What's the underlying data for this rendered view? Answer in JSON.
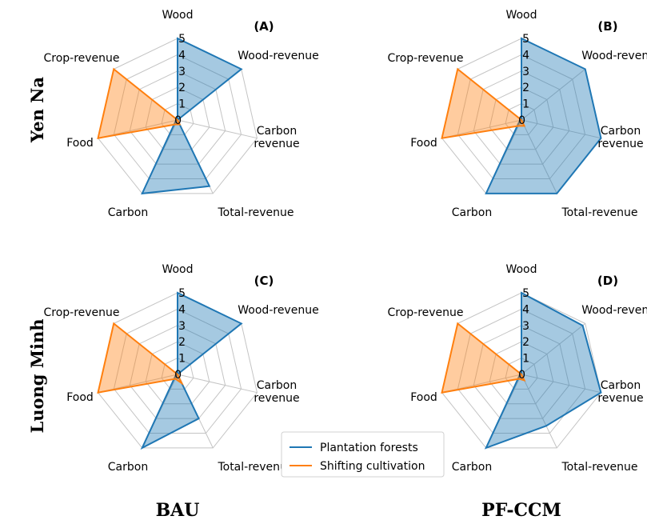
{
  "chart_data": {
    "type": "radar",
    "axes": [
      "Wood",
      "Wood-revenue",
      "Carbon\nrevenue",
      "Total-revenue",
      "Carbon",
      "Food",
      "Crop-revenue"
    ],
    "rlim": [
      0,
      5
    ],
    "rticks": [
      "0",
      "1",
      "2",
      "3",
      "4",
      "5"
    ],
    "row_labels": [
      "Yen Na",
      "Luong Minh"
    ],
    "column_labels": [
      "BAU",
      "PF-CCM"
    ],
    "legend": {
      "placement": "bottom-center",
      "entries": [
        "Plantation forests",
        "Shifting cultivation"
      ]
    },
    "colors": {
      "Plantation forests": "#1f77b4",
      "Shifting cultivation": "#ff7f0e"
    },
    "panels": [
      {
        "label": "(A)",
        "series": [
          {
            "name": "Plantation forests",
            "values": [
              5,
              5,
              0,
              4.5,
              5,
              0.1,
              0
            ]
          },
          {
            "name": "Shifting cultivation",
            "values": [
              0,
              0,
              0,
              0.3,
              0.3,
              5,
              5
            ]
          }
        ]
      },
      {
        "label": "(B)",
        "series": [
          {
            "name": "Plantation forests",
            "values": [
              5,
              5,
              5,
              5,
              5,
              0.1,
              0
            ]
          },
          {
            "name": "Shifting cultivation",
            "values": [
              0,
              0,
              0,
              0.4,
              0.4,
              5,
              5
            ]
          }
        ]
      },
      {
        "label": "(C)",
        "series": [
          {
            "name": "Plantation forests",
            "values": [
              5,
              5,
              0,
              3,
              5,
              0.1,
              0
            ]
          },
          {
            "name": "Shifting cultivation",
            "values": [
              0,
              0,
              0,
              0.6,
              0.3,
              5,
              5
            ]
          }
        ]
      },
      {
        "label": "(D)",
        "series": [
          {
            "name": "Plantation forests",
            "values": [
              5,
              4.8,
              5,
              3.5,
              5,
              0.1,
              0
            ]
          },
          {
            "name": "Shifting cultivation",
            "values": [
              0,
              0,
              0,
              0.4,
              0.3,
              5,
              5
            ]
          }
        ]
      }
    ]
  }
}
